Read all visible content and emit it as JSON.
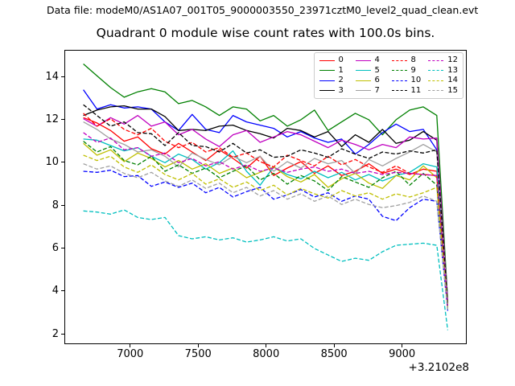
{
  "figure": {
    "data_file_label": "Data file: modeM0/AS1A07_001T05_9000003550_23971cztM0_level2_quad_clean.evt",
    "title": "Quadrant 0 module wise count rates with 100.0s bins.",
    "background_color": "#ffffff",
    "axis_color": "#000000"
  },
  "chart_data": {
    "type": "line",
    "title": "Quadrant 0 module wise count rates with 100.0s bins.",
    "xlabel": "",
    "ylabel": "",
    "grid": false,
    "legend_position": "upper right",
    "legend_ncol": 4,
    "x_axis_offset_label": "+3.2102e8",
    "x_offset_value": 321020000,
    "bin_seconds": 100.0,
    "xlim": [
      6516,
      9464
    ],
    "ylim": [
      1.58,
      15.22
    ],
    "xticks": [
      7000,
      7500,
      8000,
      8500,
      9000
    ],
    "yticks": [
      2,
      4,
      6,
      8,
      10,
      12,
      14
    ],
    "x": [
      6650,
      6750,
      6850,
      6950,
      7050,
      7150,
      7250,
      7350,
      7450,
      7550,
      7650,
      7750,
      7850,
      7950,
      8050,
      8150,
      8250,
      8350,
      8450,
      8550,
      8650,
      8750,
      8850,
      8950,
      9050,
      9150,
      9250,
      9330
    ],
    "series": [
      {
        "name": "0",
        "color": "#ff0000",
        "style": "solid",
        "values": [
          12.1,
          11.85,
          11.5,
          11.0,
          11.2,
          10.65,
          10.4,
          10.9,
          10.5,
          10.1,
          10.6,
          10.2,
          9.75,
          10.3,
          9.4,
          9.75,
          10.05,
          9.5,
          9.85,
          9.4,
          9.6,
          9.95,
          9.5,
          9.7,
          9.45,
          9.7,
          9.6,
          3.35
        ]
      },
      {
        "name": "1",
        "color": "#008000",
        "style": "solid",
        "values": [
          14.6,
          14.05,
          13.5,
          13.05,
          13.3,
          13.45,
          13.3,
          12.75,
          12.9,
          12.6,
          12.2,
          12.6,
          12.5,
          11.95,
          12.2,
          11.7,
          12.0,
          12.45,
          11.5,
          11.9,
          12.3,
          12.0,
          11.3,
          12.0,
          12.45,
          12.6,
          12.2,
          3.6
        ]
      },
      {
        "name": "2",
        "color": "#0000ff",
        "style": "solid",
        "values": [
          13.4,
          12.5,
          12.7,
          12.55,
          12.6,
          12.5,
          11.9,
          11.5,
          12.25,
          11.55,
          11.4,
          12.2,
          11.9,
          11.75,
          11.6,
          11.2,
          11.45,
          11.15,
          10.95,
          11.1,
          10.4,
          10.85,
          11.4,
          11.8,
          11.45,
          11.55,
          10.6,
          3.5
        ]
      },
      {
        "name": "3",
        "color": "#000000",
        "style": "solid",
        "values": [
          12.2,
          12.45,
          12.6,
          12.65,
          12.5,
          12.5,
          12.15,
          11.5,
          11.55,
          11.5,
          11.7,
          11.75,
          11.5,
          11.35,
          11.15,
          11.6,
          11.5,
          11.2,
          11.45,
          10.75,
          11.3,
          10.95,
          11.55,
          10.9,
          11.05,
          11.45,
          11.05,
          3.45
        ]
      },
      {
        "name": "4",
        "color": "#c000c0",
        "style": "solid",
        "values": [
          12.05,
          11.7,
          12.1,
          11.8,
          12.2,
          11.7,
          11.9,
          11.3,
          11.55,
          11.1,
          10.75,
          11.3,
          11.5,
          10.95,
          11.2,
          11.45,
          11.3,
          11.0,
          10.7,
          11.05,
          10.85,
          10.6,
          10.85,
          10.7,
          11.2,
          11.1,
          11.15,
          3.5
        ]
      },
      {
        "name": "5",
        "color": "#00bfbf",
        "style": "solid",
        "values": [
          11.1,
          11.05,
          10.8,
          10.55,
          10.7,
          10.3,
          10.0,
          10.4,
          10.15,
          9.7,
          10.0,
          10.55,
          9.6,
          8.95,
          9.8,
          9.45,
          9.25,
          9.6,
          9.3,
          9.55,
          9.2,
          9.45,
          9.15,
          9.4,
          9.55,
          9.95,
          9.8,
          3.3
        ]
      },
      {
        "name": "6",
        "color": "#bfbf00",
        "style": "solid",
        "values": [
          10.9,
          10.35,
          10.6,
          10.05,
          10.45,
          10.2,
          9.8,
          10.1,
          9.7,
          9.95,
          9.5,
          9.75,
          9.3,
          9.55,
          9.8,
          9.35,
          9.1,
          9.45,
          8.85,
          9.25,
          9.5,
          9.05,
          8.8,
          9.4,
          9.2,
          9.85,
          9.3,
          3.25
        ]
      },
      {
        "name": "7",
        "color": "#a0a0a0",
        "style": "solid",
        "values": [
          11.9,
          11.55,
          11.1,
          10.85,
          10.5,
          10.6,
          10.3,
          9.8,
          10.45,
          10.15,
          9.9,
          10.3,
          10.0,
          10.3,
          9.6,
          10.05,
          9.75,
          10.2,
          9.95,
          10.1,
          9.5,
          10.15,
          9.85,
          10.2,
          10.5,
          10.85,
          10.5,
          3.45
        ]
      },
      {
        "name": "8",
        "color": "#ff0000",
        "style": "dashed",
        "values": [
          12.3,
          11.7,
          12.05,
          11.55,
          11.3,
          11.6,
          11.0,
          10.7,
          10.95,
          10.5,
          10.7,
          10.25,
          10.45,
          10.05,
          9.8,
          10.35,
          10.1,
          9.85,
          10.3,
          9.9,
          10.15,
          9.8,
          9.55,
          9.85,
          9.5,
          9.45,
          9.4,
          3.3
        ]
      },
      {
        "name": "9",
        "color": "#008000",
        "style": "dashed",
        "values": [
          11.0,
          10.5,
          10.75,
          10.1,
          9.9,
          10.3,
          9.6,
          9.9,
          9.5,
          9.75,
          9.3,
          9.6,
          9.85,
          9.2,
          9.5,
          9.0,
          9.4,
          9.15,
          8.7,
          9.35,
          9.1,
          8.85,
          9.3,
          9.6,
          8.95,
          9.5,
          8.95,
          3.2
        ]
      },
      {
        "name": "10",
        "color": "#0000ff",
        "style": "dashed",
        "values": [
          9.6,
          9.55,
          9.65,
          9.35,
          9.4,
          8.9,
          9.1,
          8.85,
          9.05,
          8.6,
          8.85,
          8.4,
          8.65,
          8.85,
          8.3,
          8.5,
          8.75,
          8.4,
          8.6,
          8.2,
          8.45,
          8.3,
          7.5,
          7.3,
          7.9,
          8.3,
          8.2,
          3.1
        ]
      },
      {
        "name": "11",
        "color": "#000000",
        "style": "dashed",
        "values": [
          12.7,
          12.2,
          11.7,
          11.9,
          11.4,
          11.35,
          10.8,
          11.4,
          10.8,
          10.75,
          10.5,
          10.9,
          10.45,
          10.6,
          10.25,
          10.3,
          10.6,
          10.45,
          10.25,
          10.65,
          10.4,
          10.2,
          10.5,
          10.4,
          10.55,
          10.45,
          10.6,
          3.4
        ]
      },
      {
        "name": "12",
        "color": "#c000c0",
        "style": "dashed",
        "values": [
          11.4,
          10.95,
          11.15,
          10.6,
          10.7,
          10.3,
          10.45,
          10.0,
          10.2,
          9.85,
          10.05,
          9.7,
          9.9,
          9.6,
          9.75,
          9.55,
          9.7,
          9.8,
          9.6,
          9.7,
          9.5,
          9.6,
          9.45,
          9.55,
          9.5,
          9.45,
          9.4,
          3.25
        ]
      },
      {
        "name": "13",
        "color": "#00bfbf",
        "style": "dashed",
        "values": [
          7.75,
          7.7,
          7.6,
          7.8,
          7.45,
          7.35,
          7.45,
          6.6,
          6.45,
          6.55,
          6.4,
          6.5,
          6.3,
          6.4,
          6.55,
          6.35,
          6.45,
          6.0,
          5.7,
          5.4,
          5.55,
          5.45,
          5.85,
          6.15,
          6.2,
          6.25,
          6.15,
          2.2
        ]
      },
      {
        "name": "14",
        "color": "#bfbf00",
        "style": "dashed",
        "values": [
          10.35,
          10.1,
          10.3,
          9.8,
          9.55,
          9.9,
          9.45,
          9.2,
          9.5,
          9.0,
          9.25,
          8.85,
          9.1,
          8.7,
          8.95,
          8.5,
          8.8,
          8.55,
          8.35,
          8.7,
          8.45,
          8.6,
          8.3,
          8.55,
          8.4,
          8.6,
          8.85,
          3.2
        ]
      },
      {
        "name": "15",
        "color": "#a0a0a0",
        "style": "dashed",
        "values": [
          9.95,
          9.7,
          9.85,
          9.5,
          9.3,
          9.55,
          9.15,
          8.9,
          9.2,
          8.8,
          9.05,
          8.6,
          8.85,
          8.45,
          8.7,
          8.3,
          8.55,
          8.2,
          8.45,
          8.05,
          8.3,
          8.05,
          7.9,
          8.0,
          8.15,
          8.45,
          8.2,
          3.15
        ]
      }
    ]
  }
}
